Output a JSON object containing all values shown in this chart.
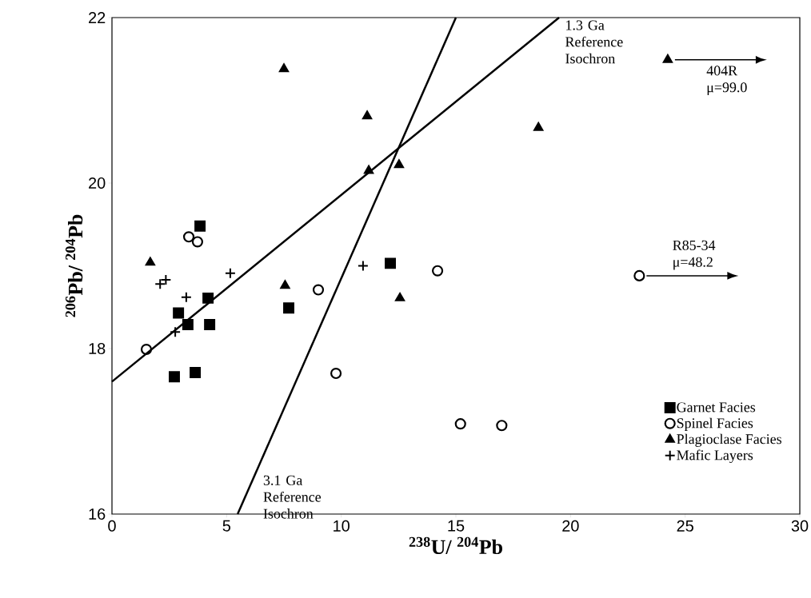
{
  "chart_data": {
    "type": "scatter",
    "xlabel": "$^{238}$U/ $^{204}$Pb",
    "ylabel": "$^{206}$Pb/ $^{204}$Pb",
    "xlim": [
      0,
      30
    ],
    "ylim": [
      16,
      22
    ],
    "xticks": [
      0,
      5,
      10,
      15,
      20,
      25,
      30
    ],
    "yticks": [
      16,
      18,
      20,
      22
    ],
    "grid": false,
    "legend": "bottom right",
    "series": [
      {
        "type": "line",
        "color": "#000000",
        "marker": "none",
        "x": [
          0,
          19.5
        ],
        "values": [
          17.6,
          22
        ]
      },
      {
        "type": "line",
        "color": "#000000",
        "marker": "none",
        "x": [
          5.48,
          15.0
        ],
        "values": [
          16,
          22
        ]
      },
      {
        "name": "Garnet Facies",
        "color": "#000000",
        "marker": "square",
        "x": [
          3.84,
          4.19,
          2.9,
          3.31,
          4.26,
          2.72,
          3.63,
          7.71,
          12.14
        ],
        "values": [
          19.48,
          18.61,
          18.43,
          18.29,
          18.29,
          17.66,
          17.71,
          18.49,
          19.03
        ]
      },
      {
        "name": "Spinel Facies",
        "color": "#000000",
        "marker": "circle",
        "x": [
          3.35,
          3.73,
          1.5,
          9.0,
          9.77,
          14.2,
          15.2,
          17.0,
          23.0
        ],
        "values": [
          19.35,
          19.29,
          17.99,
          18.71,
          17.7,
          18.94,
          17.09,
          17.07,
          18.88
        ]
      },
      {
        "name": "Plagioclase Facies",
        "color": "#000000",
        "marker": "triangle",
        "x": [
          1.67,
          7.55,
          7.5,
          11.13,
          11.2,
          12.52,
          18.6,
          12.56,
          24.24
        ],
        "values": [
          19.04,
          18.76,
          21.38,
          20.81,
          20.15,
          20.22,
          20.67,
          18.61,
          21.49
        ]
      },
      {
        "name": "Mafic Layers",
        "color": "#000000",
        "marker": "cross",
        "x": [
          5.16,
          2.1,
          2.35,
          3.24,
          2.76,
          10.95
        ],
        "values": [
          18.91,
          18.78,
          18.83,
          18.62,
          18.2,
          19.0
        ]
      }
    ],
    "annotations": [
      {
        "text": "1.3 Ga Reference Isochron",
        "x": 19.5,
        "y": 22
      },
      {
        "text": "3.1 Ga Reference Isochron",
        "x": 6.4,
        "y": 16.5
      },
      {
        "text": "404R μ=99.0",
        "x": 24.24,
        "y": 21.49
      },
      {
        "text": "R85-34 μ=48.2",
        "x": 23.0,
        "y": 18.88
      }
    ]
  }
}
